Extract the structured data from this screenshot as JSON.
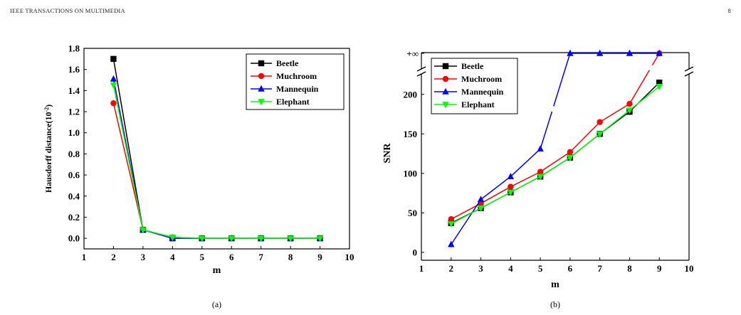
{
  "header": {
    "journal": "IEEE TRANSACTIONS ON MULTIMEDIA",
    "page_number": "8"
  },
  "colors": {
    "Beetle": "#000000",
    "Muchroom": "#ff0000",
    "Mannequin": "#0000ff",
    "Elephant": "#00ff00"
  },
  "chart_data": [
    {
      "type": "line",
      "caption": "(a)",
      "xlabel": "m",
      "ylabel": "Hausdorff distance(10",
      "ylabel_exp": "-2",
      "ylabel_close": ")",
      "xlim": [
        1,
        10
      ],
      "ylim": [
        -0.1,
        1.8
      ],
      "xticks": [
        1,
        2,
        3,
        4,
        5,
        6,
        7,
        8,
        9,
        10
      ],
      "yticks": [
        0.0,
        0.2,
        0.4,
        0.6,
        0.8,
        1.0,
        1.2,
        1.4,
        1.6,
        1.8
      ],
      "ytick_labels": [
        "0.0",
        "0.2",
        "0.4",
        "0.6",
        "0.8",
        "1.0",
        "1.2",
        "1.4",
        "1.6",
        "1.8"
      ],
      "legend_position": "top-right",
      "x": [
        2,
        3,
        4,
        5,
        6,
        7,
        8,
        9
      ],
      "series": [
        {
          "name": "Beetle",
          "marker": "square",
          "values": [
            1.7,
            0.08,
            0.0,
            0.0,
            0.0,
            0.0,
            0.0,
            0.0
          ]
        },
        {
          "name": "Muchroom",
          "marker": "circle",
          "values": [
            1.28,
            0.08,
            0.01,
            0.0,
            0.0,
            0.0,
            0.0,
            0.0
          ]
        },
        {
          "name": "Mannequin",
          "marker": "triangle-up",
          "values": [
            1.51,
            0.08,
            0.0,
            0.0,
            0.0,
            0.0,
            0.0,
            0.0
          ]
        },
        {
          "name": "Elephant",
          "marker": "triangle-down",
          "values": [
            1.45,
            0.08,
            0.01,
            0.0,
            0.0,
            0.0,
            0.0,
            0.0
          ]
        }
      ]
    },
    {
      "type": "line",
      "caption": "(b)",
      "xlabel": "m",
      "ylabel": "SNR",
      "xlim": [
        1,
        10
      ],
      "ylim": [
        -10,
        225
      ],
      "broken_axis": true,
      "infinity_label": "+∞",
      "xticks": [
        1,
        2,
        3,
        4,
        5,
        6,
        7,
        8,
        9,
        10
      ],
      "yticks": [
        0,
        50,
        100,
        150,
        200
      ],
      "ytick_labels": [
        "0",
        "50",
        "100",
        "150",
        "200"
      ],
      "legend_position": "top-left",
      "x": [
        2,
        3,
        4,
        5,
        6,
        7,
        8,
        9
      ],
      "series": [
        {
          "name": "Beetle",
          "marker": "square",
          "values": [
            37,
            56,
            76,
            96,
            120,
            150,
            178,
            215
          ]
        },
        {
          "name": "Muchroom",
          "marker": "circle",
          "values": [
            42,
            62,
            83,
            102,
            127,
            165,
            188,
            "+∞"
          ]
        },
        {
          "name": "Mannequin",
          "marker": "triangle-up",
          "values": [
            10,
            67,
            96,
            131,
            "+∞",
            "+∞",
            "+∞",
            "+∞"
          ]
        },
        {
          "name": "Elephant",
          "marker": "triangle-down",
          "values": [
            36,
            56,
            76,
            96,
            120,
            150,
            180,
            210
          ]
        }
      ]
    }
  ]
}
